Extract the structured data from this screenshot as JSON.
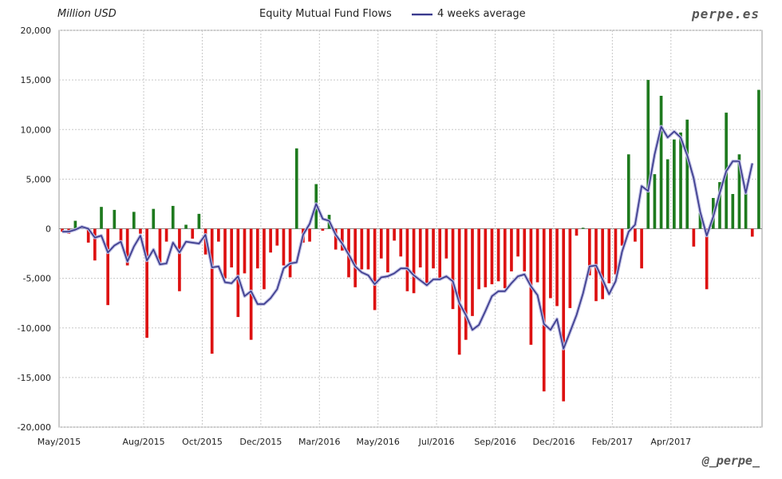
{
  "header": {
    "unit": "Million USD",
    "title": "Equity Mutual Fund Flows",
    "legend_label": "4 weeks average",
    "brand_top": "perpe.es",
    "brand_bottom": "@_perpe_"
  },
  "colors": {
    "positive": "#1e7a1e",
    "negative": "#dd1111",
    "average_line": "#3a3a8c",
    "average_halo": "#b8b8e0",
    "grid": "#c8c8c8"
  },
  "chart_data": {
    "type": "bar",
    "title": "Equity Mutual Fund Flows",
    "ylabel": "Million USD",
    "ylim": [
      -20000,
      20000
    ],
    "yticks": [
      20000,
      15000,
      10000,
      5000,
      0,
      -5000,
      -10000,
      -15000,
      -20000
    ],
    "ytick_labels": [
      "20,000",
      "15,000",
      "10,000",
      "5,000",
      "0",
      "-5,000",
      "-10,000",
      "-15,000",
      "-20,000"
    ],
    "xticks": [
      {
        "label": "May/2015",
        "week": 0
      },
      {
        "label": "Aug/2015",
        "week": 13
      },
      {
        "label": "Oct/2015",
        "week": 22
      },
      {
        "label": "Dec/2015",
        "week": 31
      },
      {
        "label": "Mar/2016",
        "week": 40
      },
      {
        "label": "May/2016",
        "week": 49
      },
      {
        "label": "Jul/2016",
        "week": 58
      },
      {
        "label": "Sep/2016",
        "week": 67
      },
      {
        "label": "Dec/2016",
        "week": 76
      },
      {
        "label": "Feb/2017",
        "week": 85
      },
      {
        "label": "Apr/2017",
        "week": 94
      }
    ],
    "grid": true,
    "legend": "top-center",
    "series": [
      {
        "name": "",
        "type": "bar",
        "values": [
          -300,
          -500,
          800,
          200,
          -1400,
          -3200,
          2200,
          -7700,
          1900,
          -1500,
          -3700,
          1700,
          -500,
          -11000,
          2000,
          -3400,
          -1300,
          2300,
          -6300,
          400,
          -1000,
          1500,
          -2600,
          -12600,
          -1300,
          -5000,
          -3900,
          -8900,
          -4500,
          -11200,
          -4000,
          -6100,
          -2400,
          -1700,
          -3700,
          -4900,
          8100,
          -1400,
          -1300,
          4500,
          -200,
          1400,
          -2100,
          -2200,
          -4900,
          -5900,
          -4100,
          -4100,
          -8200,
          -3000,
          -4400,
          -1200,
          -2800,
          -6300,
          -6500,
          -3900,
          -5800,
          -4000,
          -5200,
          -3000,
          -8100,
          -12700,
          -11200,
          -8800,
          -6100,
          -5900,
          -5600,
          -5300,
          -6000,
          -4300,
          -2800,
          -4300,
          -11700,
          -5400,
          -16400,
          -7000,
          -7800,
          -17400,
          -8000,
          -700,
          100,
          -4700,
          -7300,
          -7100,
          -5500,
          -4600,
          -1700,
          7500,
          -1300,
          -4000,
          15000,
          5500,
          13400,
          7000,
          9000,
          9700,
          11000,
          -1800,
          1600,
          -6100,
          3100,
          4700,
          11700,
          3500,
          7500,
          4400,
          -800,
          14000
        ]
      },
      {
        "name": "4 weeks average",
        "type": "line",
        "values": [
          -300,
          -300,
          -100,
          200,
          0,
          -900,
          -700,
          -2400,
          -1700,
          -1300,
          -3300,
          -1800,
          -700,
          -3200,
          -2100,
          -3600,
          -3500,
          -1400,
          -2400,
          -1300,
          -1400,
          -1500,
          -600,
          -3900,
          -3800,
          -5400,
          -5500,
          -4800,
          -6800,
          -6300,
          -7600,
          -7600,
          -7000,
          -6100,
          -4000,
          -3500,
          -3400,
          -600,
          500,
          2500,
          1000,
          800,
          -600,
          -1500,
          -2600,
          -3800,
          -4400,
          -4700,
          -5600,
          -4900,
          -4800,
          -4500,
          -4000,
          -4000,
          -4700,
          -5200,
          -5700,
          -5100,
          -5100,
          -4800,
          -5300,
          -7500,
          -8700,
          -10200,
          -9700,
          -8300,
          -6800,
          -6300,
          -6300,
          -5500,
          -4800,
          -4600,
          -5800,
          -6700,
          -9600,
          -10200,
          -9100,
          -12100,
          -10400,
          -8700,
          -6500,
          -3800,
          -3700,
          -5100,
          -6600,
          -5300,
          -2300,
          -300,
          400,
          4300,
          3800,
          7500,
          10300,
          9200,
          9800,
          9200,
          7400,
          5100,
          1700,
          -700,
          1200,
          3600,
          5800,
          6800,
          6800,
          3600,
          6600
        ]
      }
    ]
  }
}
